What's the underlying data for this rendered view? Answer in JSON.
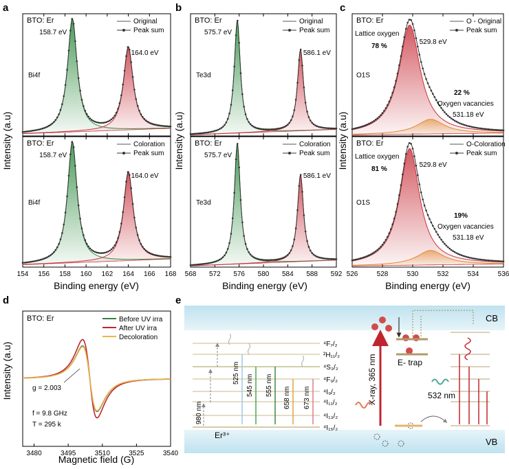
{
  "panel_letters": {
    "a": "a",
    "b": "b",
    "c": "c",
    "d": "d",
    "e": "e"
  },
  "xps": {
    "ylabel": "Intensity (a.u)",
    "xlabel": "Binding energy (eV)",
    "sample": "BTO: Er"
  },
  "chart_data": [
    {
      "id": "a-top",
      "panel": "a",
      "type": "line",
      "title": "BTO: Er",
      "xlabel": "Binding energy (eV)",
      "ylabel": "Intensity (a.u)",
      "xlim": [
        154,
        168
      ],
      "ylim": [
        0,
        1.05
      ],
      "ticks": [
        154,
        156,
        158,
        160,
        162,
        164,
        166,
        168
      ],
      "legend": [
        "Original",
        "Peak sum"
      ],
      "element_label": "Bi4f",
      "peaks": [
        {
          "center": 158.7,
          "height": 1.0,
          "width": 0.55,
          "color": "#2e8b3f",
          "label": "158.7 eV"
        },
        {
          "center": 164.0,
          "height": 0.73,
          "width": 0.55,
          "color": "#c8323c",
          "label": "164.0 eV"
        }
      ],
      "baseline": [
        0.02,
        0.08
      ]
    },
    {
      "id": "a-bot",
      "panel": "a",
      "type": "line",
      "title": "BTO: Er",
      "xlabel": "Binding energy (eV)",
      "ylabel": "Intensity (a.u)",
      "xlim": [
        154,
        168
      ],
      "ylim": [
        0,
        1.05
      ],
      "ticks": [
        154,
        156,
        158,
        160,
        162,
        164,
        166,
        168
      ],
      "legend": [
        "Coloration",
        "Peak sum"
      ],
      "element_label": "Bi4f",
      "peaks": [
        {
          "center": 158.7,
          "height": 1.0,
          "width": 0.55,
          "color": "#2e8b3f",
          "label": "158.7 eV"
        },
        {
          "center": 164.0,
          "height": 0.73,
          "width": 0.55,
          "color": "#c8323c",
          "label": "164.0 eV"
        }
      ],
      "baseline": [
        0.02,
        0.08
      ]
    },
    {
      "id": "b-top",
      "panel": "b",
      "type": "line",
      "title": "BTO: Er",
      "xlabel": "Binding energy (eV)",
      "ylabel": "Intensity (a.u)",
      "xlim": [
        568,
        592
      ],
      "ylim": [
        0,
        1.05
      ],
      "ticks": [
        568,
        572,
        576,
        580,
        584,
        588,
        592
      ],
      "legend": [
        "Original",
        "Peak sum"
      ],
      "element_label": "Te3d",
      "peaks": [
        {
          "center": 575.7,
          "height": 1.0,
          "width": 0.6,
          "color": "#2e8b3f",
          "label": "575.7 eV"
        },
        {
          "center": 586.1,
          "height": 0.72,
          "width": 0.6,
          "color": "#c8323c",
          "label": "586.1 eV"
        }
      ],
      "baseline": [
        0.01,
        0.07
      ]
    },
    {
      "id": "b-bot",
      "panel": "b",
      "type": "line",
      "title": "BTO: Er",
      "xlabel": "Binding energy (eV)",
      "ylabel": "Intensity (a.u)",
      "xlim": [
        568,
        592
      ],
      "ylim": [
        0,
        1.05
      ],
      "ticks": [
        568,
        572,
        576,
        580,
        584,
        588,
        592
      ],
      "legend": [
        "Coloration",
        "Peak sum"
      ],
      "element_label": "Te3d",
      "peaks": [
        {
          "center": 575.7,
          "height": 1.0,
          "width": 0.6,
          "color": "#2e8b3f",
          "label": "575.7 eV"
        },
        {
          "center": 586.1,
          "height": 0.72,
          "width": 0.6,
          "color": "#c8323c",
          "label": "586.1 eV"
        }
      ],
      "baseline": [
        0.01,
        0.07
      ]
    },
    {
      "id": "c-top",
      "panel": "c",
      "type": "line",
      "title": "BTO: Er",
      "xlabel": "Binding energy (eV)",
      "ylabel": "Intensity (a.u)",
      "xlim": [
        526,
        536
      ],
      "ylim": [
        0,
        1.05
      ],
      "ticks": [
        526,
        528,
        530,
        532,
        534,
        536
      ],
      "legend": [
        "O - Original",
        "Peak sum"
      ],
      "element_label": "O1S",
      "peaks": [
        {
          "center": 529.8,
          "height": 0.97,
          "width": 0.85,
          "color": "#c8323c",
          "label": "529.8 eV",
          "name": "Lattice oxygen",
          "percent": "78 %"
        },
        {
          "center": 531.18,
          "height": 0.13,
          "width": 1.1,
          "color": "#e08a2c",
          "label": "531.18 eV",
          "name": "Oxygen vacancies",
          "percent": "22 %"
        }
      ],
      "baseline": [
        0.01,
        0.03
      ]
    },
    {
      "id": "c-bot",
      "panel": "c",
      "type": "line",
      "title": "BTO: Er",
      "xlabel": "Binding energy (eV)",
      "ylabel": "Intensity (a.u)",
      "xlim": [
        526,
        536
      ],
      "ylim": [
        0,
        1.05
      ],
      "ticks": [
        526,
        528,
        530,
        532,
        534,
        536
      ],
      "legend": [
        "O-Coloration",
        "Peak sum"
      ],
      "element_label": "O1S",
      "peaks": [
        {
          "center": 529.8,
          "height": 0.97,
          "width": 0.8,
          "color": "#c8323c",
          "label": "529.8 eV",
          "name": "Lattice oxygen",
          "percent": "81 %"
        },
        {
          "center": 531.18,
          "height": 0.12,
          "width": 1.1,
          "color": "#e08a2c",
          "label": "531.18 eV",
          "name": "Oxygen vacancies",
          "percent": "19%"
        }
      ],
      "baseline": [
        0.01,
        0.03
      ]
    },
    {
      "id": "d",
      "panel": "d",
      "type": "line",
      "title": "BTO: Er",
      "xlabel": "Magnetic field (G)",
      "ylabel": "Intensity (a.u)",
      "xlim": [
        3475,
        3540
      ],
      "ylim": [
        -1.1,
        1.1
      ],
      "ticks": [
        3480,
        3495,
        3510,
        3525,
        3540
      ],
      "center": 3504.5,
      "width": 5.5,
      "series": [
        {
          "name": "Before UV irra",
          "color": "#3a7d44",
          "amplitude": 0.82
        },
        {
          "name": "After UV irra",
          "color": "#c0252f",
          "amplitude": 0.98
        },
        {
          "name": "Decoloration",
          "color": "#e9b64a",
          "amplitude": 0.8
        }
      ],
      "annotations": [
        "g = 2.003",
        "f = 9.8 GHz",
        "T = 295 k"
      ]
    }
  ],
  "diagram": {
    "cb": "CB",
    "vb": "VB",
    "er_label": "Er³⁺",
    "xray_label": "X-ray, 365 nm",
    "trap_label": "E- trap",
    "emit_532": "532 nm",
    "excite_980": "980 nm",
    "levels": [
      "⁴F₇/₂",
      "²H₁₁/₂",
      "⁴S₃/₂",
      "⁴F₉/₂",
      "⁴I₉/₂",
      "⁴I₁₁/₂",
      "⁴I₁₃/₂",
      "⁴I₁₅/₂"
    ],
    "emissions": [
      "525 nm",
      "545 nm",
      "555 nm",
      "658 nm",
      "673 nm"
    ]
  }
}
